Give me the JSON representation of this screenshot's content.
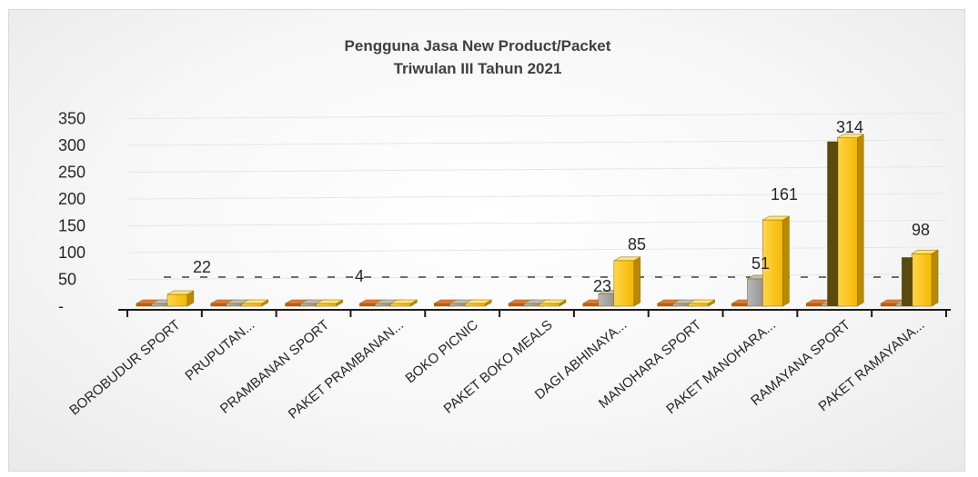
{
  "chart_data": {
    "type": "bar",
    "title": "Pengguna Jasa New Product/Packet",
    "subtitle": "Triwulan III Tahun 2021",
    "categories": [
      "BOROBUDUR SPORT",
      "PRUPUTAN...",
      "PRAMBANAN SPORT",
      "PAKET PRAMBANAN...",
      "BOKO PICNIC",
      "PAKET BOKO MEALS",
      "DAGI ABHINAYA...",
      "MANOHARA SPORT",
      "PAKET MANOHARA...",
      "RAMAYANA SPORT",
      "PAKET RAMAYANA..."
    ],
    "series": [
      {
        "color": "#c55a11",
        "values": [
          0,
          0,
          0,
          0,
          0,
          0,
          0,
          0,
          0,
          0,
          0
        ]
      },
      {
        "color": "#8c8c8c",
        "values": [
          0,
          0,
          0,
          0,
          0,
          0,
          23,
          0,
          51,
          0,
          0
        ]
      },
      {
        "color": "#ffc000",
        "values": [
          22,
          0,
          4,
          0,
          0,
          0,
          85,
          0,
          161,
          0,
          0
        ]
      },
      {
        "color": "#ffc000",
        "values": [
          0,
          0,
          0,
          0,
          0,
          0,
          0,
          0,
          0,
          314,
          98
        ]
      }
    ],
    "data_labels": [
      {
        "category": "BOROBUDUR SPORT",
        "text": "22"
      },
      {
        "category": "PRAMBANAN SPORT",
        "text": "4"
      },
      {
        "category": "DAGI ABHINAYA...",
        "text": "23"
      },
      {
        "category": "DAGI ABHINAYA...",
        "text": "85"
      },
      {
        "category": "PAKET MANOHARA...",
        "text": "51"
      },
      {
        "category": "PAKET MANOHARA...",
        "text": "161"
      },
      {
        "category": "RAMAYANA SPORT",
        "text": "314"
      },
      {
        "category": "PAKET RAMAYANA...",
        "text": "98"
      }
    ],
    "yticks": [
      "-",
      "50",
      "100",
      "150",
      "200",
      "250",
      "300",
      "350"
    ],
    "ylim": [
      0,
      350
    ],
    "grid": true,
    "style": "3d-column"
  }
}
